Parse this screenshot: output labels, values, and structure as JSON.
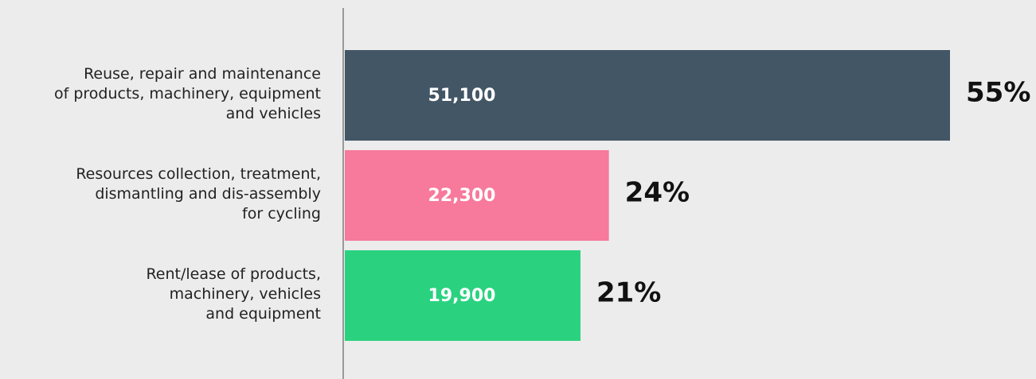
{
  "chart_data": {
    "type": "hbar",
    "categories": [
      "Reuse, repair and maintenance\nof products, machinery, equipment\nand vehicles",
      "Resources collection, treatment,\ndismantling and dis-assembly\nfor cycling",
      "Rent/lease of products,\nmachinery, vehicles\nand equipment"
    ],
    "values": [
      51100,
      22300,
      19900
    ],
    "value_labels": [
      "51,100",
      "22,300",
      "19,900"
    ],
    "shares": [
      55,
      24,
      21
    ],
    "share_labels": [
      "55%",
      "24%",
      "21%"
    ],
    "colors": [
      "#435666",
      "#f7799c",
      "#2ad280"
    ],
    "xlim": [
      0,
      51100
    ]
  }
}
